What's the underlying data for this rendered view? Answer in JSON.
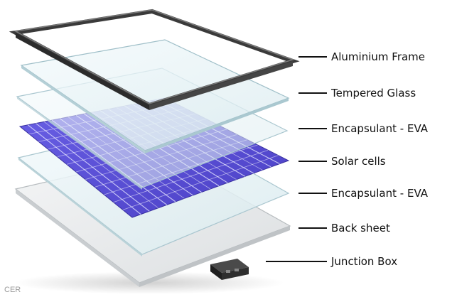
{
  "layers": [
    {
      "id": "frame",
      "label": "Aluminium Frame"
    },
    {
      "id": "glass",
      "label": "Tempered Glass"
    },
    {
      "id": "eva-top",
      "label": "Encapsulant - EVA"
    },
    {
      "id": "cells",
      "label": "Solar cells"
    },
    {
      "id": "eva-bottom",
      "label": "Encapsulant - EVA"
    },
    {
      "id": "backsheet",
      "label": "Back sheet"
    },
    {
      "id": "junction",
      "label": "Junction Box"
    }
  ],
  "credit": "CER",
  "colors": {
    "frame": "#3a3a3a",
    "glass": "#dfeef2",
    "cell": "#5a4fd6",
    "backsheet": "#e9ebec",
    "junction": "#2a2a2a",
    "leader": "#111111"
  }
}
